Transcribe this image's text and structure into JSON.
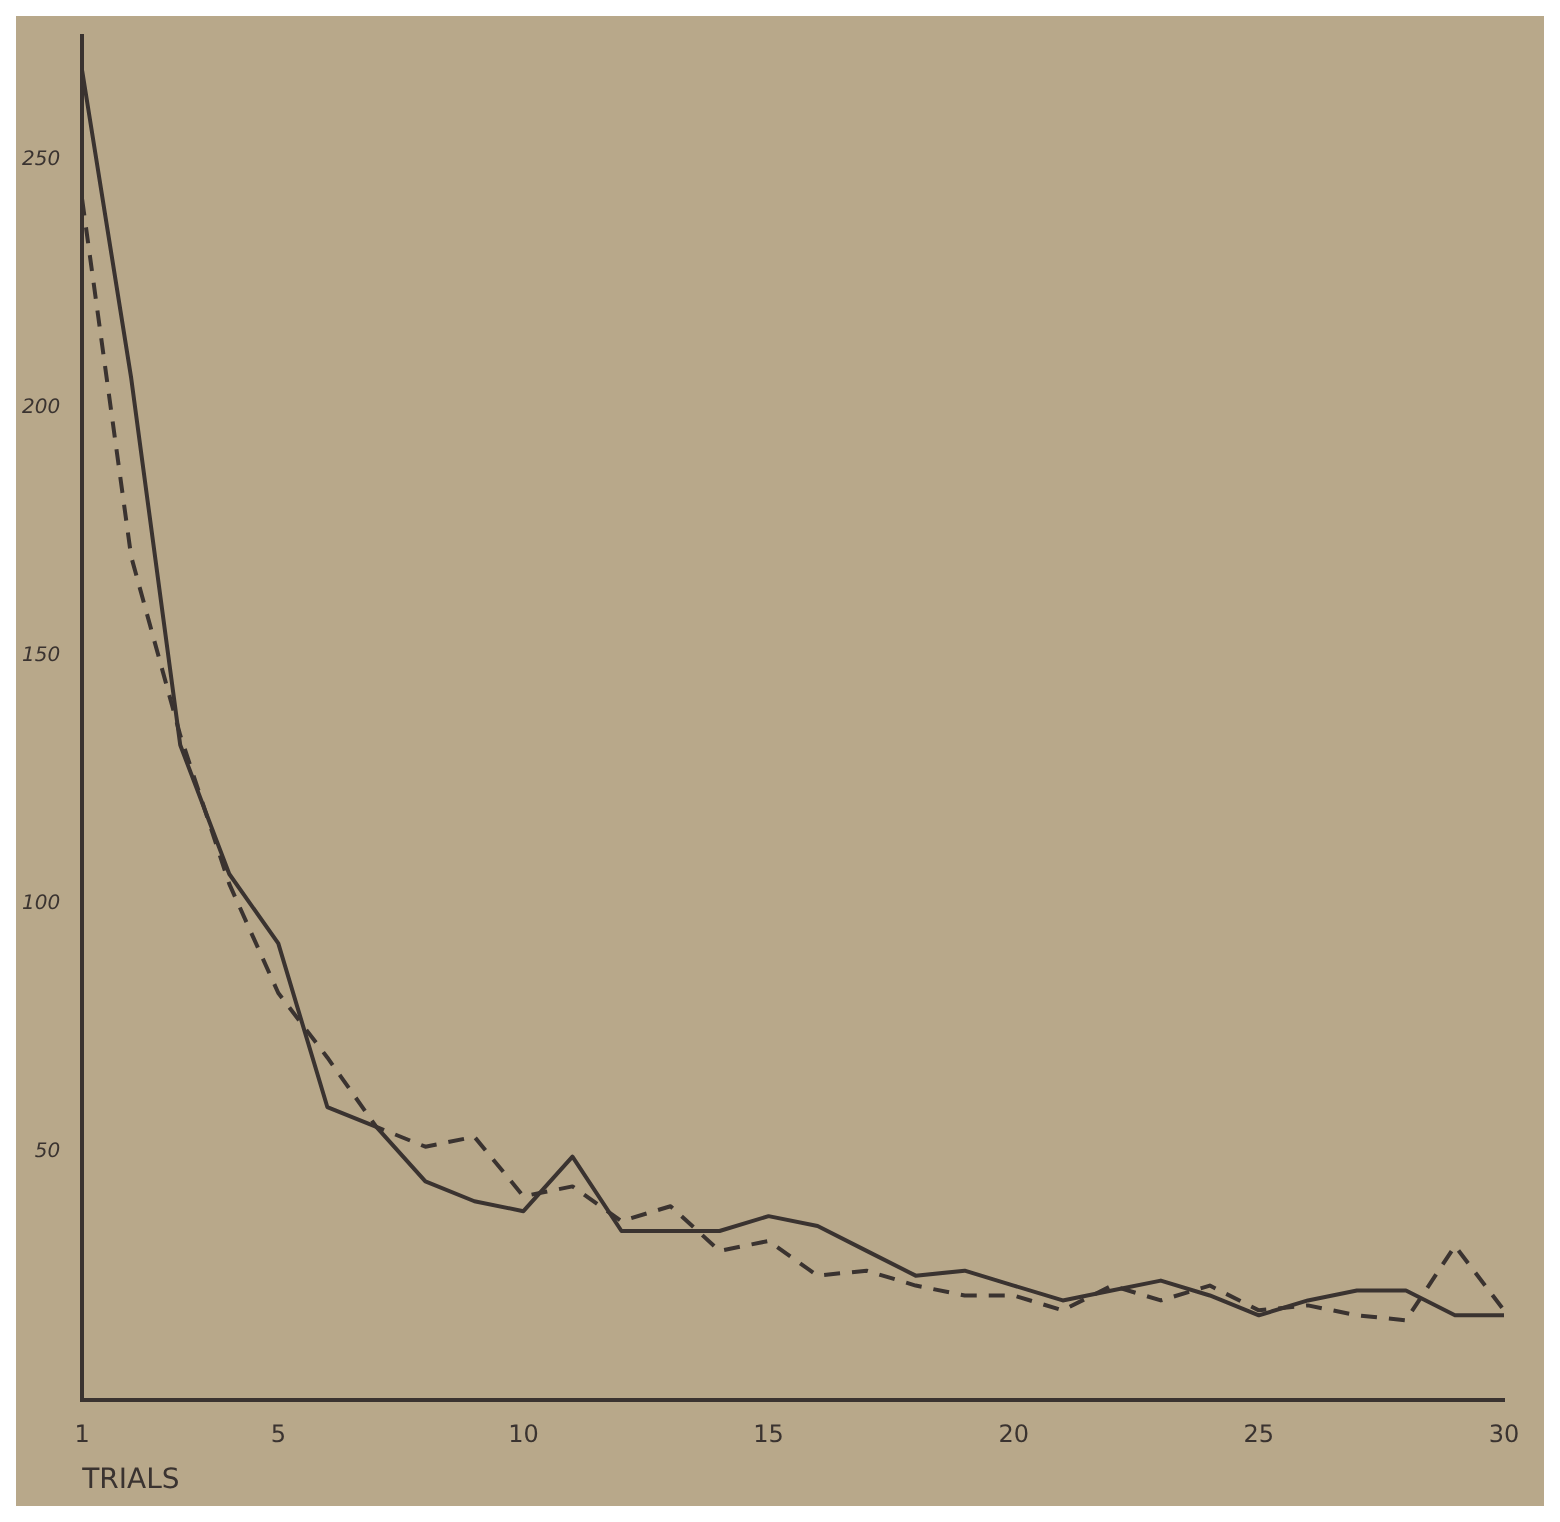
{
  "chart_data": {
    "type": "line",
    "xlabel": "TRIALS",
    "x": [
      1,
      2,
      3,
      4,
      5,
      6,
      7,
      8,
      9,
      10,
      11,
      12,
      13,
      14,
      15,
      16,
      17,
      18,
      19,
      20,
      21,
      22,
      23,
      24,
      25,
      26,
      27,
      28,
      29,
      30
    ],
    "series": [
      {
        "color": "#3a3330",
        "line_style": "solid",
        "values": [
          268,
          206,
          132,
          106,
          92,
          59,
          55,
          44,
          40,
          38,
          49,
          34,
          34,
          34,
          37,
          35,
          30,
          25,
          26,
          23,
          20,
          22,
          24,
          21,
          17,
          20,
          22,
          22,
          17,
          17
        ]
      },
      {
        "color": "#3a3330",
        "line_style": "dashed",
        "values": [
          242,
          170,
          134,
          104,
          82,
          69,
          55,
          51,
          53,
          41,
          43,
          36,
          39,
          30,
          32,
          25,
          26,
          23,
          21,
          21,
          18,
          23,
          20,
          23,
          18,
          19,
          17,
          16,
          31,
          18
        ]
      }
    ],
    "xlim": [
      1,
      30
    ],
    "xticks": [
      1,
      5,
      10,
      15,
      20,
      25,
      30
    ],
    "ylim": [
      0,
      275
    ],
    "yticks": [
      50,
      100,
      150,
      200,
      250
    ],
    "grid": false,
    "legend": false,
    "marker": "none"
  }
}
